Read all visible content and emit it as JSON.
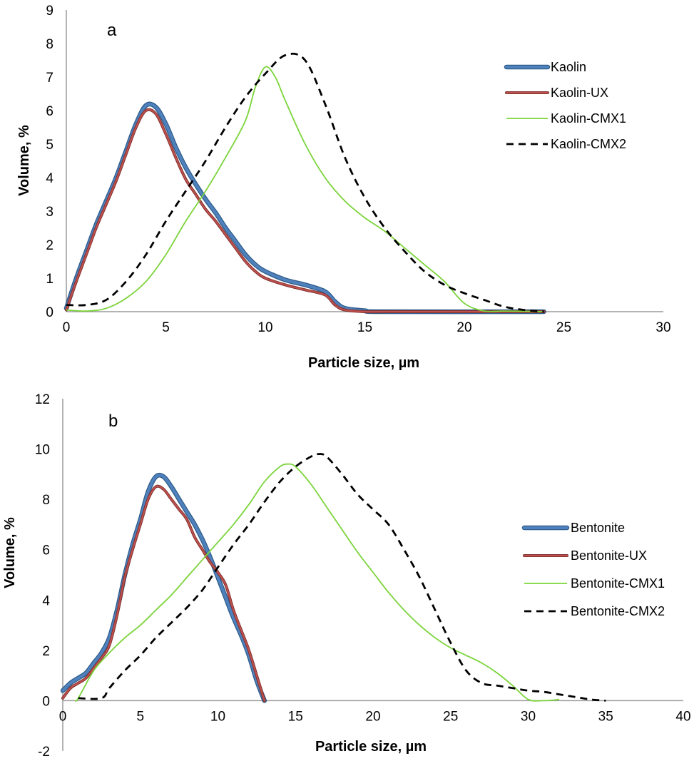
{
  "chart_data": [
    {
      "type": "line",
      "panel_label": "a",
      "xlabel": "Particle size, µm",
      "ylabel": "Volume, %",
      "xlim": [
        0,
        30
      ],
      "ylim": [
        0,
        9
      ],
      "xticks": [
        0,
        5,
        10,
        15,
        20,
        25,
        30
      ],
      "yticks": [
        0,
        1,
        2,
        3,
        4,
        5,
        6,
        7,
        8,
        9
      ],
      "grid": false,
      "legend_position": "top-right",
      "series": [
        {
          "name": "Kaolin",
          "color": "#4F81BD",
          "style": "thick",
          "points": [
            [
              0,
              0.1
            ],
            [
              0.5,
              1.0
            ],
            [
              1,
              1.8
            ],
            [
              1.5,
              2.6
            ],
            [
              2,
              3.3
            ],
            [
              2.5,
              4.0
            ],
            [
              3,
              4.8
            ],
            [
              3.5,
              5.6
            ],
            [
              4,
              6.15
            ],
            [
              4.5,
              6.1
            ],
            [
              5,
              5.6
            ],
            [
              5.5,
              4.9
            ],
            [
              6,
              4.3
            ],
            [
              6.5,
              3.8
            ],
            [
              7,
              3.35
            ],
            [
              7.5,
              2.95
            ],
            [
              8,
              2.5
            ],
            [
              8.5,
              2.1
            ],
            [
              9,
              1.7
            ],
            [
              9.5,
              1.4
            ],
            [
              10,
              1.2
            ],
            [
              11,
              0.95
            ],
            [
              12,
              0.8
            ],
            [
              13,
              0.6
            ],
            [
              13.5,
              0.3
            ],
            [
              14,
              0.1
            ],
            [
              15,
              0.03
            ],
            [
              16,
              0.0
            ],
            [
              24,
              0.0
            ]
          ]
        },
        {
          "name": "Kaolin-UX",
          "color": "#C0504D",
          "style": "medium",
          "points": [
            [
              0,
              0.05
            ],
            [
              0.5,
              0.9
            ],
            [
              1,
              1.7
            ],
            [
              1.5,
              2.5
            ],
            [
              2,
              3.2
            ],
            [
              2.5,
              3.9
            ],
            [
              3,
              4.7
            ],
            [
              3.5,
              5.5
            ],
            [
              4,
              6.0
            ],
            [
              4.5,
              5.9
            ],
            [
              5,
              5.3
            ],
            [
              5.5,
              4.6
            ],
            [
              6,
              3.95
            ],
            [
              6.5,
              3.5
            ],
            [
              7,
              3.05
            ],
            [
              7.5,
              2.7
            ],
            [
              8,
              2.3
            ],
            [
              8.5,
              1.9
            ],
            [
              9,
              1.5
            ],
            [
              9.5,
              1.2
            ],
            [
              10,
              1.0
            ],
            [
              11,
              0.8
            ],
            [
              12,
              0.65
            ],
            [
              13,
              0.5
            ],
            [
              13.5,
              0.2
            ],
            [
              14,
              0.05
            ],
            [
              15,
              0.0
            ],
            [
              16,
              0.0
            ],
            [
              24,
              0.0
            ]
          ]
        },
        {
          "name": "Kaolin-CMX1",
          "color": "#7BD43A",
          "style": "thin",
          "points": [
            [
              0,
              0.05
            ],
            [
              1,
              0.02
            ],
            [
              2,
              0.1
            ],
            [
              3,
              0.4
            ],
            [
              4,
              0.9
            ],
            [
              5,
              1.7
            ],
            [
              6,
              2.7
            ],
            [
              7,
              3.6
            ],
            [
              8,
              4.6
            ],
            [
              9,
              5.7
            ],
            [
              9.5,
              6.7
            ],
            [
              10,
              7.3
            ],
            [
              10.5,
              7.0
            ],
            [
              11,
              6.3
            ],
            [
              12,
              5.0
            ],
            [
              13,
              4.0
            ],
            [
              14,
              3.3
            ],
            [
              15,
              2.8
            ],
            [
              16,
              2.4
            ],
            [
              17,
              1.9
            ],
            [
              18,
              1.4
            ],
            [
              19,
              0.9
            ],
            [
              20,
              0.25
            ],
            [
              21,
              0.02
            ],
            [
              22,
              0.02
            ],
            [
              24,
              0.0
            ]
          ]
        },
        {
          "name": "Kaolin-CMX2",
          "color": "#000000",
          "style": "dashed",
          "points": [
            [
              0,
              0.2
            ],
            [
              1,
              0.2
            ],
            [
              2,
              0.35
            ],
            [
              3,
              0.9
            ],
            [
              4,
              1.7
            ],
            [
              5,
              2.7
            ],
            [
              6,
              3.6
            ],
            [
              7,
              4.5
            ],
            [
              8,
              5.5
            ],
            [
              9,
              6.4
            ],
            [
              10,
              7.1
            ],
            [
              11,
              7.65
            ],
            [
              12,
              7.5
            ],
            [
              13,
              6.2
            ],
            [
              14,
              4.6
            ],
            [
              15,
              3.4
            ],
            [
              16,
              2.5
            ],
            [
              17,
              1.8
            ],
            [
              18,
              1.2
            ],
            [
              19,
              0.8
            ],
            [
              20,
              0.55
            ],
            [
              21,
              0.35
            ],
            [
              22,
              0.15
            ],
            [
              23,
              0.05
            ],
            [
              24,
              0.0
            ]
          ]
        }
      ]
    },
    {
      "type": "line",
      "panel_label": "b",
      "xlabel": "Particle size, µm",
      "ylabel": "Volume, %",
      "xlim": [
        0,
        40
      ],
      "ylim": [
        -2,
        12
      ],
      "xticks": [
        0,
        5,
        10,
        15,
        20,
        25,
        30,
        35,
        40
      ],
      "yticks": [
        -2,
        0,
        2,
        4,
        6,
        8,
        10,
        12
      ],
      "grid": false,
      "legend_position": "right",
      "series": [
        {
          "name": "Bentonite",
          "color": "#4F81BD",
          "style": "thick",
          "points": [
            [
              0,
              0.4
            ],
            [
              0.5,
              0.7
            ],
            [
              1,
              0.9
            ],
            [
              1.5,
              1.1
            ],
            [
              2,
              1.5
            ],
            [
              2.5,
              1.9
            ],
            [
              3,
              2.5
            ],
            [
              3.5,
              3.6
            ],
            [
              4,
              5.0
            ],
            [
              4.5,
              6.2
            ],
            [
              5,
              7.2
            ],
            [
              5.5,
              8.3
            ],
            [
              6,
              8.9
            ],
            [
              6.5,
              8.9
            ],
            [
              7,
              8.5
            ],
            [
              7.5,
              8.0
            ],
            [
              8,
              7.5
            ],
            [
              8.5,
              7.0
            ],
            [
              9,
              6.4
            ],
            [
              9.5,
              5.7
            ],
            [
              10,
              4.9
            ],
            [
              10.5,
              4.1
            ],
            [
              11,
              3.3
            ],
            [
              11.5,
              2.6
            ],
            [
              12,
              1.8
            ],
            [
              12.5,
              0.8
            ],
            [
              13,
              0.0
            ]
          ]
        },
        {
          "name": "Bentonite-UX",
          "color": "#C0504D",
          "style": "medium",
          "points": [
            [
              0,
              0.1
            ],
            [
              0.5,
              0.5
            ],
            [
              1,
              0.7
            ],
            [
              1.5,
              0.9
            ],
            [
              2,
              1.3
            ],
            [
              2.5,
              1.7
            ],
            [
              3,
              2.2
            ],
            [
              3.5,
              3.4
            ],
            [
              4,
              4.9
            ],
            [
              4.5,
              6.0
            ],
            [
              5,
              7.0
            ],
            [
              5.5,
              8.0
            ],
            [
              6,
              8.5
            ],
            [
              6.5,
              8.4
            ],
            [
              7,
              8.0
            ],
            [
              7.5,
              7.6
            ],
            [
              8,
              7.2
            ],
            [
              8.5,
              6.5
            ],
            [
              9,
              6.0
            ],
            [
              9.5,
              5.5
            ],
            [
              10,
              5.1
            ],
            [
              10.5,
              4.6
            ],
            [
              11,
              3.6
            ],
            [
              11.5,
              2.8
            ],
            [
              12,
              2.0
            ],
            [
              12.5,
              1.0
            ],
            [
              13,
              0.0
            ]
          ]
        },
        {
          "name": "Bentonite-CMX1",
          "color": "#7BD43A",
          "style": "thin",
          "points": [
            [
              0.8,
              0.0
            ],
            [
              1,
              0.1
            ],
            [
              2,
              1.2
            ],
            [
              3,
              1.9
            ],
            [
              4,
              2.5
            ],
            [
              5,
              3.0
            ],
            [
              6,
              3.6
            ],
            [
              7,
              4.2
            ],
            [
              8,
              4.9
            ],
            [
              9,
              5.6
            ],
            [
              10,
              6.3
            ],
            [
              11,
              7.0
            ],
            [
              12,
              7.8
            ],
            [
              13,
              8.7
            ],
            [
              14,
              9.3
            ],
            [
              14.5,
              9.4
            ],
            [
              15,
              9.3
            ],
            [
              16,
              8.6
            ],
            [
              17,
              7.7
            ],
            [
              18,
              6.8
            ],
            [
              19,
              5.9
            ],
            [
              20,
              5.1
            ],
            [
              21,
              4.3
            ],
            [
              22,
              3.6
            ],
            [
              23,
              3.0
            ],
            [
              24,
              2.5
            ],
            [
              25,
              2.1
            ],
            [
              26,
              1.8
            ],
            [
              27,
              1.5
            ],
            [
              28,
              1.1
            ],
            [
              29,
              0.6
            ],
            [
              30,
              0.05
            ],
            [
              31,
              0.0
            ],
            [
              32,
              0.05
            ]
          ]
        },
        {
          "name": "Bentonite-CMX2",
          "color": "#000000",
          "style": "dashed",
          "points": [
            [
              1,
              0.1
            ],
            [
              2.5,
              0.1
            ],
            [
              3,
              0.5
            ],
            [
              4,
              1.2
            ],
            [
              5,
              1.8
            ],
            [
              6,
              2.5
            ],
            [
              7,
              3.1
            ],
            [
              8,
              3.7
            ],
            [
              9,
              4.4
            ],
            [
              10,
              5.3
            ],
            [
              11,
              6.2
            ],
            [
              12,
              7.0
            ],
            [
              13,
              7.9
            ],
            [
              14,
              8.7
            ],
            [
              15,
              9.3
            ],
            [
              16,
              9.7
            ],
            [
              16.5,
              9.8
            ],
            [
              17,
              9.7
            ],
            [
              18,
              9.0
            ],
            [
              19,
              8.2
            ],
            [
              20,
              7.6
            ],
            [
              21,
              7.0
            ],
            [
              22,
              6.0
            ],
            [
              23,
              4.9
            ],
            [
              24,
              3.6
            ],
            [
              25,
              2.3
            ],
            [
              26,
              1.2
            ],
            [
              27,
              0.7
            ],
            [
              28,
              0.6
            ],
            [
              29,
              0.5
            ],
            [
              30,
              0.4
            ],
            [
              31,
              0.35
            ],
            [
              32,
              0.25
            ],
            [
              33,
              0.15
            ],
            [
              34,
              0.05
            ],
            [
              35,
              0.0
            ]
          ]
        }
      ]
    }
  ]
}
